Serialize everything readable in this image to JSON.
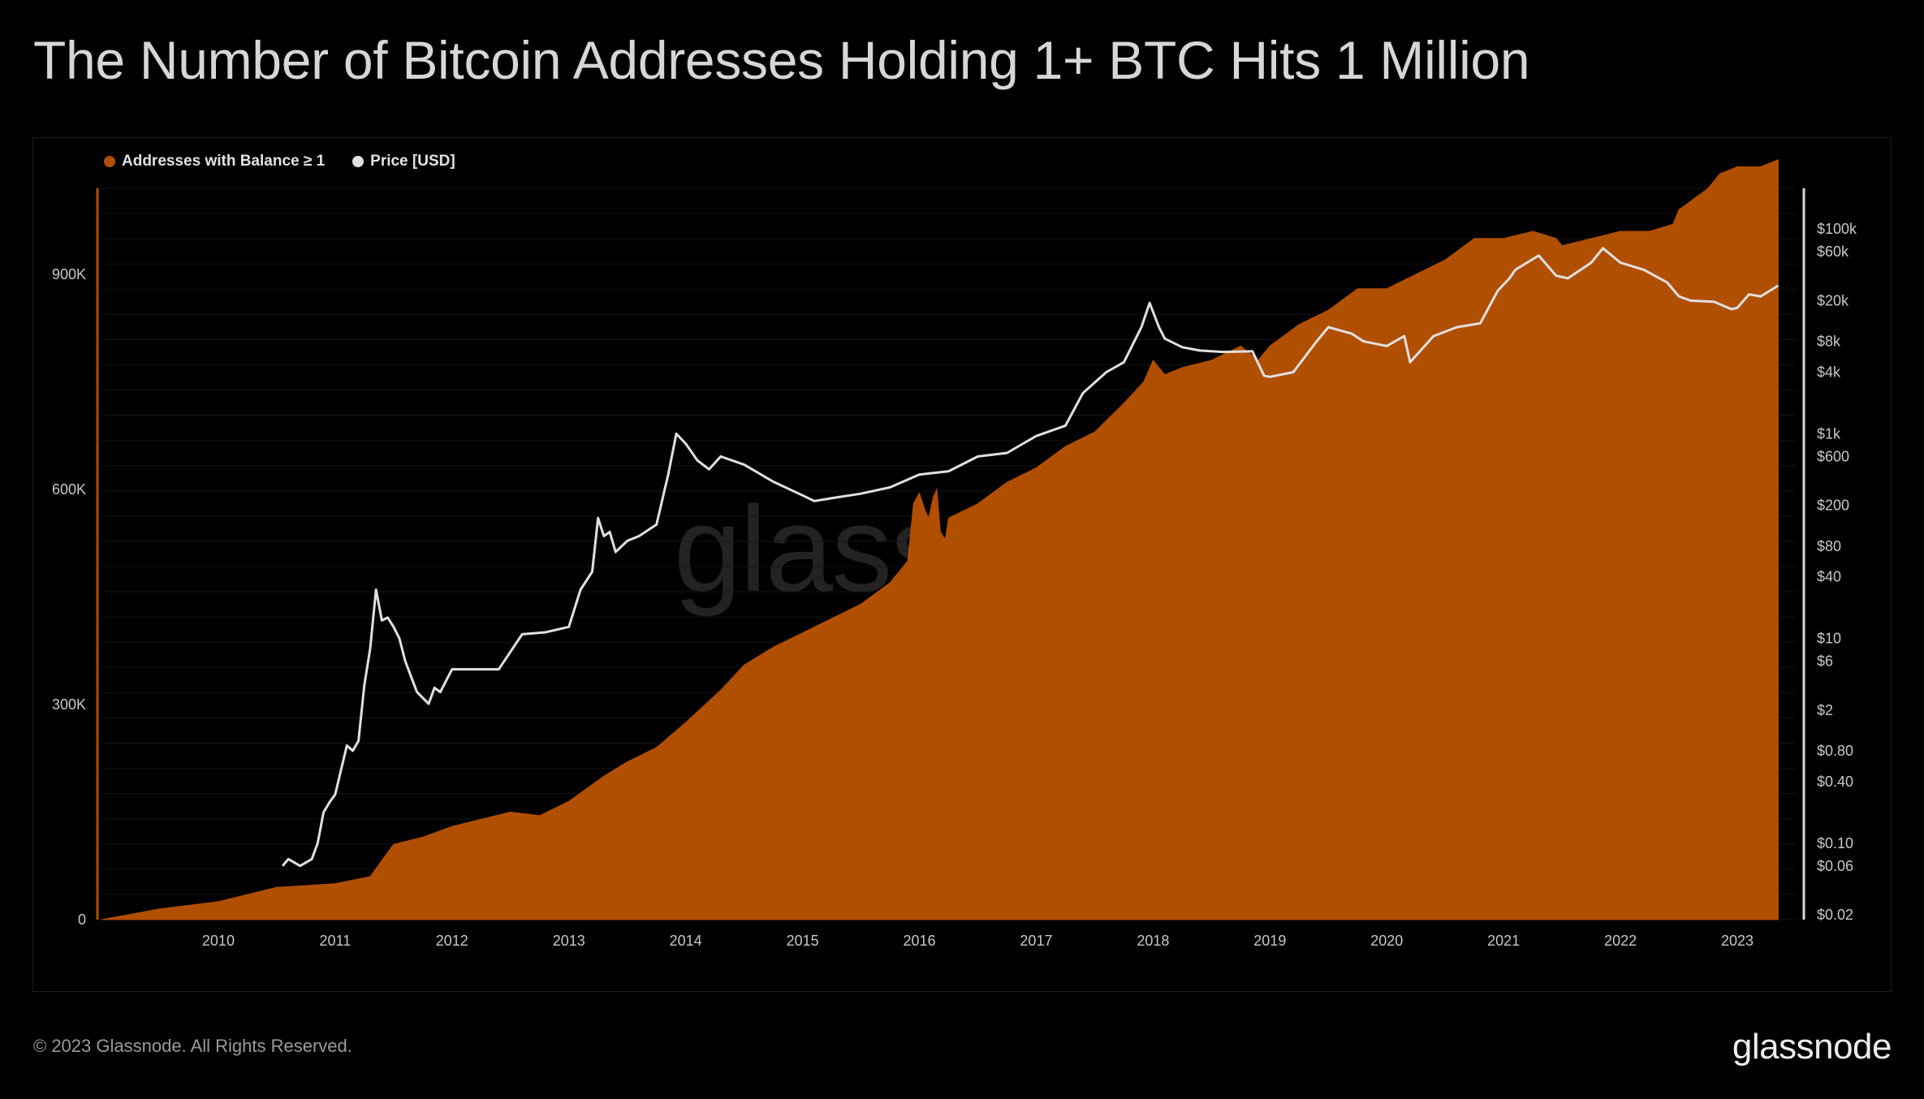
{
  "page": {
    "title": "The Number of Bitcoin Addresses Holding 1+ BTC Hits 1 Million",
    "footer": "© 2023 Glassnode. All Rights Reserved.",
    "brand": "glassnode",
    "watermark": "glassnode"
  },
  "colors": {
    "background": "#000000",
    "addresses": "#b14f00",
    "price": "#e0e0e0",
    "axis_line": "#d9d9d9"
  },
  "chart_data": {
    "type": "area",
    "title": "The Number of Bitcoin Addresses Holding 1+ BTC Hits 1 Million",
    "legend_position": "top-left",
    "grid": true,
    "x_ticks": [
      "2010",
      "2011",
      "2012",
      "2013",
      "2014",
      "2015",
      "2016",
      "2017",
      "2018",
      "2019",
      "2020",
      "2021",
      "2022",
      "2023"
    ],
    "y_left": {
      "scale": "linear",
      "range": [
        0,
        1020000
      ],
      "ticks": [
        0,
        300000,
        600000,
        900000
      ],
      "tick_labels": [
        "0",
        "300K",
        "600K",
        "900K"
      ]
    },
    "y_right": {
      "scale": "log",
      "range": [
        0.02,
        150000
      ],
      "ticks": [
        0.02,
        0.06,
        0.1,
        0.4,
        0.8,
        2,
        6,
        10,
        40,
        80,
        200,
        600,
        1000,
        4000,
        8000,
        20000,
        60000,
        100000
      ],
      "tick_labels": [
        "$0.02",
        "$0.06",
        "$0.10",
        "$0.40",
        "$0.80",
        "$2",
        "$6",
        "$10",
        "$40",
        "$80",
        "$200",
        "$600",
        "$1k",
        "$4k",
        "$8k",
        "$20k",
        "$60k",
        "$100k"
      ]
    },
    "series": [
      {
        "name": "Addresses with Balance ≥ 1",
        "kind": "area",
        "axis": "left",
        "color": "#b14f00",
        "x": [
          2009.0,
          2009.5,
          2010.0,
          2010.5,
          2011.0,
          2011.3,
          2011.5,
          2011.75,
          2012.0,
          2012.5,
          2012.75,
          2013.0,
          2013.3,
          2013.5,
          2013.75,
          2014.0,
          2014.3,
          2014.5,
          2014.75,
          2015.0,
          2015.25,
          2015.5,
          2015.75,
          2015.9,
          2015.95,
          2016.0,
          2016.05,
          2016.08,
          2016.12,
          2016.15,
          2016.18,
          2016.22,
          2016.25,
          2016.5,
          2016.75,
          2017.0,
          2017.25,
          2017.5,
          2017.75,
          2017.92,
          2018.0,
          2018.1,
          2018.25,
          2018.5,
          2018.75,
          2018.9,
          2019.0,
          2019.25,
          2019.5,
          2019.75,
          2020.0,
          2020.25,
          2020.5,
          2020.75,
          2021.0,
          2021.25,
          2021.45,
          2021.5,
          2021.75,
          2022.0,
          2022.25,
          2022.45,
          2022.5,
          2022.75,
          2022.8,
          2022.85,
          2023.0,
          2023.2,
          2023.35
        ],
        "y": [
          0,
          15000,
          25000,
          45000,
          50000,
          60000,
          105000,
          115000,
          130000,
          150000,
          145000,
          165000,
          200000,
          220000,
          240000,
          275000,
          320000,
          355000,
          380000,
          400000,
          420000,
          440000,
          470000,
          500000,
          580000,
          595000,
          570000,
          560000,
          590000,
          600000,
          540000,
          530000,
          560000,
          580000,
          610000,
          630000,
          660000,
          680000,
          720000,
          750000,
          780000,
          760000,
          770000,
          780000,
          800000,
          780000,
          800000,
          830000,
          850000,
          880000,
          880000,
          900000,
          920000,
          950000,
          950000,
          960000,
          950000,
          940000,
          950000,
          960000,
          960000,
          970000,
          990000,
          1020000,
          1030000,
          1040000,
          1050000,
          1050000,
          1060000
        ]
      },
      {
        "name": "Price [USD]",
        "kind": "line",
        "axis": "right",
        "color": "#e0e0e0",
        "x": [
          2010.55,
          2010.6,
          2010.7,
          2010.8,
          2010.85,
          2010.9,
          2010.95,
          2011.0,
          2011.1,
          2011.15,
          2011.2,
          2011.25,
          2011.3,
          2011.35,
          2011.4,
          2011.45,
          2011.5,
          2011.55,
          2011.6,
          2011.7,
          2011.8,
          2011.85,
          2011.9,
          2012.0,
          2012.2,
          2012.4,
          2012.6,
          2012.8,
          2013.0,
          2013.1,
          2013.2,
          2013.25,
          2013.3,
          2013.35,
          2013.4,
          2013.5,
          2013.6,
          2013.75,
          2013.85,
          2013.92,
          2014.0,
          2014.1,
          2014.2,
          2014.3,
          2014.5,
          2014.75,
          2015.0,
          2015.1,
          2015.3,
          2015.5,
          2015.75,
          2016.0,
          2016.25,
          2016.5,
          2016.75,
          2017.0,
          2017.25,
          2017.4,
          2017.6,
          2017.75,
          2017.9,
          2017.97,
          2018.05,
          2018.1,
          2018.25,
          2018.4,
          2018.6,
          2018.85,
          2018.95,
          2019.0,
          2019.2,
          2019.4,
          2019.5,
          2019.7,
          2019.8,
          2020.0,
          2020.15,
          2020.2,
          2020.4,
          2020.6,
          2020.8,
          2020.95,
          2021.05,
          2021.1,
          2021.3,
          2021.45,
          2021.55,
          2021.75,
          2021.85,
          2022.0,
          2022.2,
          2022.4,
          2022.5,
          2022.6,
          2022.8,
          2022.95,
          2023.0,
          2023.1,
          2023.2,
          2023.35
        ],
        "y": [
          0.06,
          0.07,
          0.06,
          0.07,
          0.1,
          0.2,
          0.25,
          0.3,
          0.9,
          0.8,
          1.0,
          3.5,
          8,
          30,
          15,
          16,
          13,
          10,
          6,
          3,
          2.3,
          3.3,
          3,
          5,
          5,
          5,
          11,
          11.5,
          13,
          30,
          45,
          150,
          100,
          110,
          70,
          90,
          100,
          130,
          400,
          1000,
          800,
          550,
          450,
          600,
          500,
          340,
          250,
          220,
          240,
          260,
          300,
          400,
          430,
          600,
          650,
          950,
          1200,
          2500,
          4000,
          5000,
          11000,
          19000,
          11000,
          8500,
          7000,
          6500,
          6300,
          6400,
          3700,
          3600,
          4000,
          8000,
          11000,
          9500,
          8000,
          7200,
          9000,
          5000,
          9000,
          11000,
          12000,
          25000,
          33000,
          40000,
          55000,
          35000,
          33000,
          47000,
          65000,
          47000,
          40000,
          30000,
          22000,
          20000,
          19500,
          16500,
          17000,
          23000,
          22000,
          28000
        ]
      }
    ]
  }
}
